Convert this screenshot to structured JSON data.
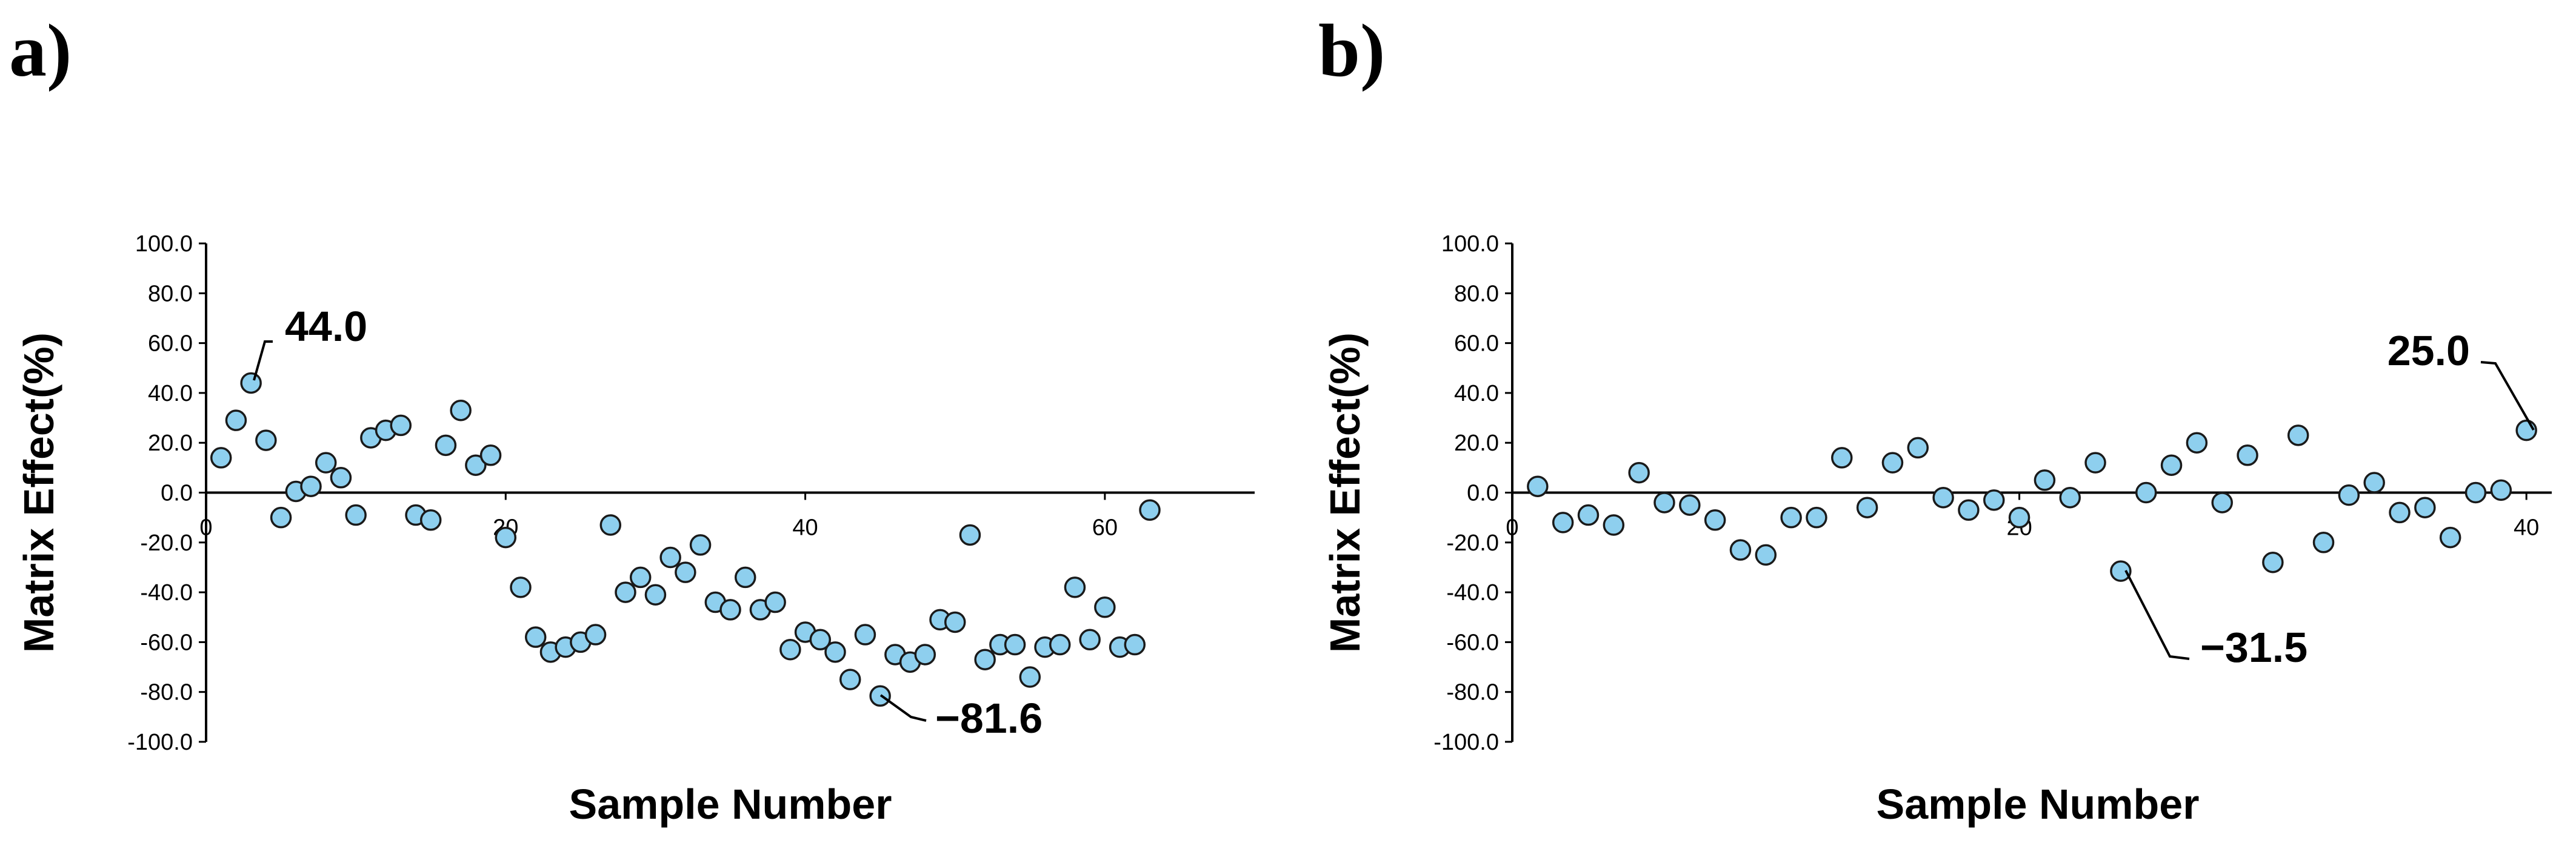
{
  "chart_data": [
    {
      "panel_label": "a)",
      "type": "scatter",
      "title": "",
      "xlabel": "Sample Number",
      "ylabel": "Matrix Effect(%)",
      "xlim": [
        0,
        70
      ],
      "ylim": [
        -100,
        100
      ],
      "x_ticks": [
        0,
        20,
        40,
        60
      ],
      "x_tick_labels": [
        "0",
        "20",
        "40",
        "60"
      ],
      "y_ticks": [
        100,
        80,
        60,
        40,
        20,
        0,
        -20,
        -40,
        -60,
        -80,
        -100
      ],
      "y_tick_labels": [
        "100.0",
        "80.0",
        "60.0",
        "40.0",
        "20.0",
        "0.0",
        "-20.0",
        "-40.0",
        "-60.0",
        "-80.0",
        "-100.0"
      ],
      "grid": false,
      "series": [
        {
          "name": "Matrix effect",
          "color": "#8ecfee",
          "x": [
            1,
            2,
            3,
            4,
            5,
            6,
            7,
            8,
            9,
            10,
            11,
            12,
            13,
            14,
            15,
            16,
            17,
            18,
            19,
            20,
            21,
            22,
            23,
            24,
            25,
            26,
            27,
            28,
            29,
            30,
            31,
            32,
            33,
            34,
            35,
            36,
            37,
            38,
            39,
            40,
            41,
            42,
            43,
            44,
            45,
            46,
            47,
            48,
            49,
            50,
            51,
            52,
            53,
            54,
            55,
            56,
            57,
            58,
            59,
            60,
            61,
            62,
            63
          ],
          "y": [
            14.0,
            29.0,
            44.0,
            21.0,
            -10.0,
            0.5,
            2.5,
            12.0,
            6.0,
            -9.0,
            22.0,
            25.0,
            27.0,
            -9.0,
            -11.0,
            19.0,
            33.0,
            11.0,
            15.0,
            -18.0,
            -38.0,
            -58.0,
            -64.0,
            -62.0,
            -60.0,
            -57.0,
            -13.0,
            -40.0,
            -34.0,
            -41.0,
            -26.0,
            -32.0,
            -21.0,
            -44.0,
            -47.0,
            -34.0,
            -47.0,
            -44.0,
            -63.0,
            -56.0,
            -59.0,
            -64.0,
            -75.0,
            -57.0,
            -81.6,
            -65.0,
            -68.0,
            -65.0,
            -51.0,
            -52.0,
            -17.0,
            -67.0,
            -61.0,
            -61.0,
            -74.0,
            -62.0,
            -61.0,
            -38.0,
            -59.0,
            -46.0,
            -62.0,
            -61.0,
            -7.0
          ]
        }
      ],
      "annotations": [
        {
          "text": "44.0",
          "x": 3,
          "y": 44.0
        },
        {
          "text": "−81.6",
          "x": 45,
          "y": -81.6
        }
      ]
    },
    {
      "panel_label": "b)",
      "type": "scatter",
      "title": "",
      "xlabel": "Sample Number",
      "ylabel": "Matrix Effect(%)",
      "xlim": [
        0,
        41
      ],
      "ylim": [
        -100,
        100
      ],
      "x_ticks": [
        0,
        20,
        40
      ],
      "x_tick_labels": [
        "0",
        "20",
        "40"
      ],
      "y_ticks": [
        100,
        80,
        60,
        40,
        20,
        0,
        -20,
        -40,
        -60,
        -80,
        -100
      ],
      "y_tick_labels": [
        "100.0",
        "80.0",
        "60.0",
        "40.0",
        "20.0",
        "0.0",
        "-20.0",
        "-40.0",
        "-60.0",
        "-80.0",
        "-100.0"
      ],
      "grid": false,
      "series": [
        {
          "name": "Matrix effect",
          "color": "#8ecfee",
          "x": [
            1,
            2,
            3,
            4,
            5,
            6,
            7,
            8,
            9,
            10,
            11,
            12,
            13,
            14,
            15,
            16,
            17,
            18,
            19,
            20,
            21,
            22,
            23,
            24,
            25,
            26,
            27,
            28,
            29,
            30,
            31,
            32,
            33,
            34,
            35,
            36,
            37,
            38,
            39,
            40
          ],
          "y": [
            2.5,
            -12.0,
            -9.0,
            -13.0,
            8.0,
            -4.0,
            -5.0,
            -11.0,
            -23.0,
            -25.0,
            -10.0,
            -10.0,
            14.0,
            -6.0,
            12.0,
            18.0,
            -2.0,
            -7.0,
            -3.0,
            -10.0,
            5.0,
            -2.0,
            12.0,
            -31.5,
            0.0,
            11.0,
            20.0,
            -4.0,
            15.0,
            -28.0,
            23.0,
            -20.0,
            -1.0,
            4.0,
            -8.0,
            -6.0,
            -18.0,
            0.0,
            1.0,
            25.0
          ]
        }
      ],
      "annotations": [
        {
          "text": "25.0",
          "x": 40,
          "y": 25.0
        },
        {
          "text": "−31.5",
          "x": 24,
          "y": -31.5
        }
      ]
    }
  ]
}
